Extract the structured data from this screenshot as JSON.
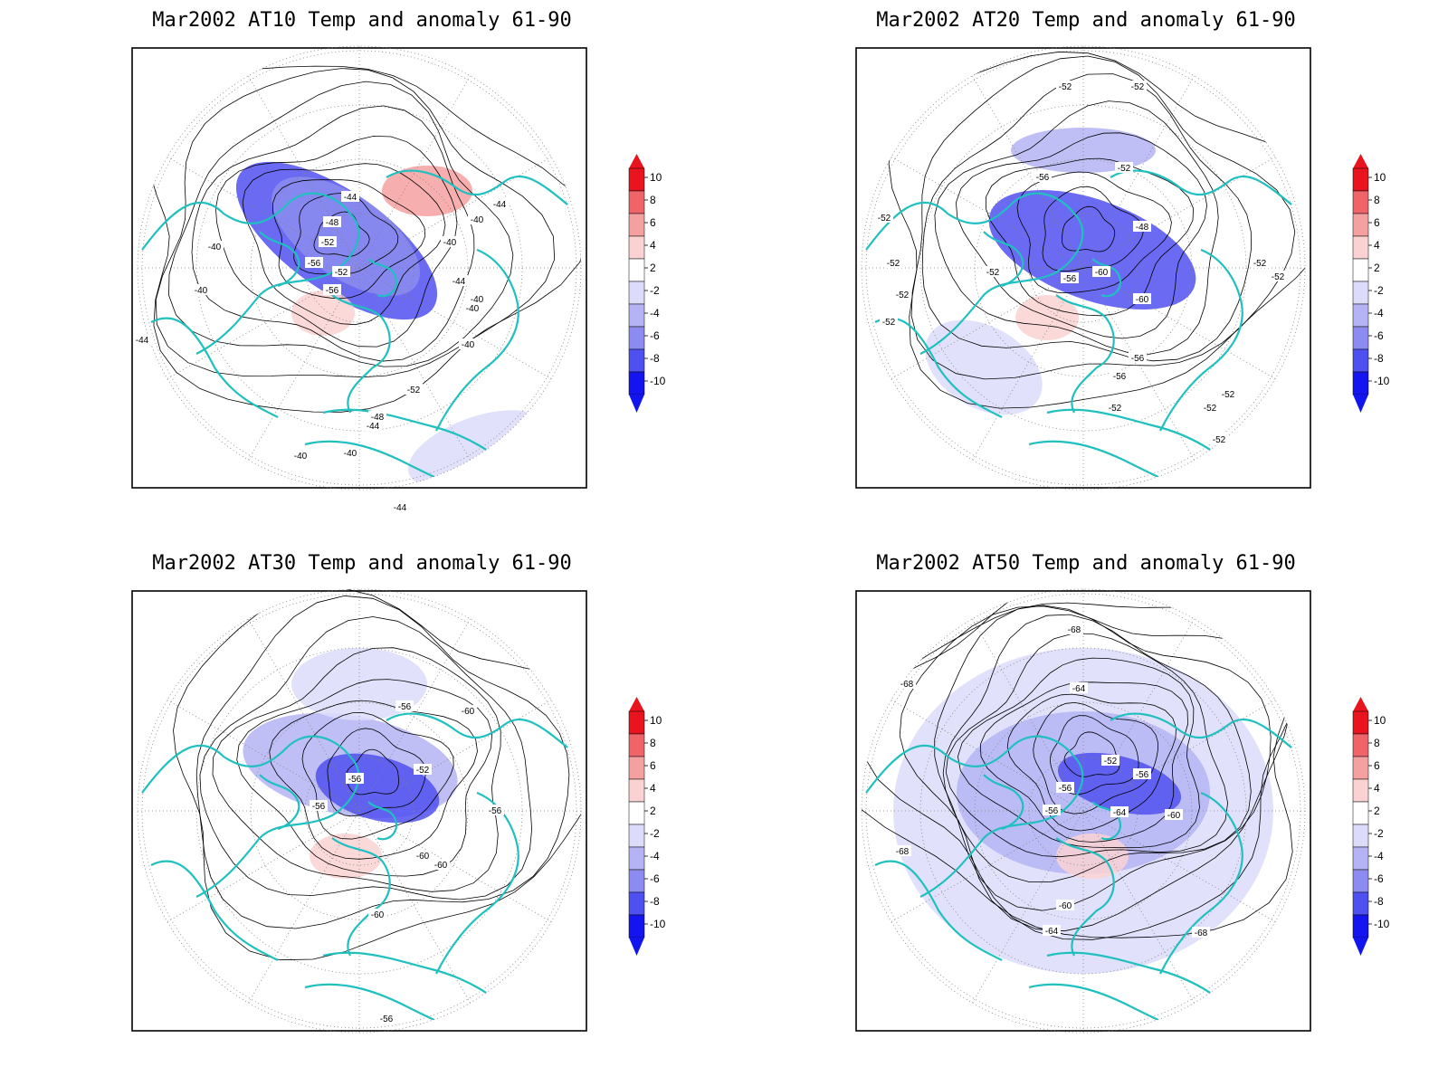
{
  "figure": {
    "panels": [
      {
        "title": "Mar2002 AT10 Temp and anomaly 61-90",
        "contour_labels": [
          "-44",
          "-48",
          "-52",
          "-56",
          "-56",
          "-52",
          "-52",
          "-48",
          "-44",
          "-40",
          "-40",
          "-40",
          "-40",
          "-40",
          "-40",
          "-40",
          "-40",
          "-40",
          "-44",
          "-44",
          "-44",
          "-44"
        ],
        "anomaly_patches": [
          {
            "sign": "cold",
            "level": -8
          },
          {
            "sign": "cold",
            "level": -6
          },
          {
            "sign": "warm",
            "level": 6
          },
          {
            "sign": "warm",
            "level": 4
          },
          {
            "sign": "cold",
            "level": -2
          }
        ]
      },
      {
        "title": "Mar2002 AT20 Temp and anomaly 61-90",
        "contour_labels": [
          "-52",
          "-52",
          "-52",
          "-52",
          "-56",
          "-52",
          "-48",
          "-60",
          "-56",
          "-60",
          "-56",
          "-56",
          "-52",
          "-52",
          "-52",
          "-52",
          "-52",
          "-52",
          "-52",
          "-52",
          "-52"
        ],
        "anomaly_patches": [
          {
            "sign": "cold",
            "level": -8
          },
          {
            "sign": "cold",
            "level": -4
          },
          {
            "sign": "warm",
            "level": 4
          },
          {
            "sign": "cold",
            "level": -2
          }
        ]
      },
      {
        "title": "Mar2002 AT30 Temp and anomaly 61-90",
        "contour_labels": [
          "-56",
          "-60",
          "-52",
          "-56",
          "-56",
          "-56",
          "-60",
          "-60",
          "-60",
          "-56"
        ],
        "anomaly_patches": [
          {
            "sign": "cold",
            "level": -8
          },
          {
            "sign": "cold",
            "level": -4
          },
          {
            "sign": "warm",
            "level": 4
          },
          {
            "sign": "cold",
            "level": -2
          }
        ]
      },
      {
        "title": "Mar2002 AT50 Temp and anomaly 61-90",
        "contour_labels": [
          "-68",
          "-68",
          "-64",
          "-52",
          "-56",
          "-56",
          "-56",
          "-64",
          "-60",
          "-68",
          "-60",
          "-64",
          "-68"
        ],
        "anomaly_patches": [
          {
            "sign": "cold",
            "level": -8
          },
          {
            "sign": "cold",
            "level": -4
          },
          {
            "sign": "warm",
            "level": 4
          },
          {
            "sign": "cold",
            "level": -2
          }
        ]
      }
    ],
    "colorbar": {
      "levels": [
        "10",
        "8",
        "6",
        "4",
        "2",
        "-2",
        "-4",
        "-6",
        "-8",
        "-10"
      ],
      "colors": [
        "#e8141e",
        "#f06469",
        "#f5a0a0",
        "#fad2d2",
        "#ffffff",
        "#dcdcfa",
        "#b4b4f5",
        "#8c8cf0",
        "#5050f0",
        "#1414f0"
      ],
      "top_arrow_color": "#e8141e",
      "bottom_arrow_color": "#1414f0"
    },
    "colors": {
      "coastline": "#20c0c0",
      "contour": "#000000",
      "grid": "#808080"
    }
  }
}
